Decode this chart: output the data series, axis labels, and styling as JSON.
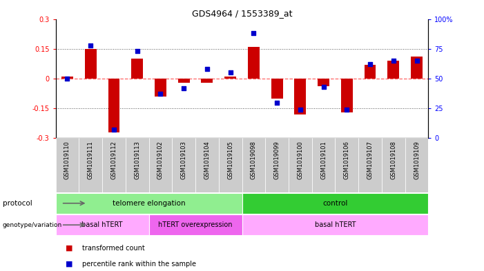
{
  "title": "GDS4964 / 1553389_at",
  "samples": [
    "GSM1019110",
    "GSM1019111",
    "GSM1019112",
    "GSM1019113",
    "GSM1019102",
    "GSM1019103",
    "GSM1019104",
    "GSM1019105",
    "GSM1019098",
    "GSM1019099",
    "GSM1019100",
    "GSM1019101",
    "GSM1019106",
    "GSM1019107",
    "GSM1019108",
    "GSM1019109"
  ],
  "transformed_count": [
    0.01,
    0.15,
    -0.27,
    0.1,
    -0.09,
    -0.02,
    -0.02,
    0.01,
    0.16,
    -0.1,
    -0.18,
    -0.04,
    -0.17,
    0.07,
    0.09,
    0.11
  ],
  "percentile_rank": [
    50,
    78,
    7,
    73,
    37,
    42,
    58,
    55,
    88,
    30,
    24,
    43,
    24,
    62,
    65,
    65
  ],
  "ylim_left": [
    -0.3,
    0.3
  ],
  "ylim_right": [
    0,
    100
  ],
  "yticks_left": [
    -0.3,
    -0.15,
    0,
    0.15,
    0.3
  ],
  "yticks_right": [
    0,
    25,
    50,
    75,
    100
  ],
  "protocol_groups": [
    {
      "label": "telomere elongation",
      "start": 0,
      "end": 8,
      "color": "#90EE90"
    },
    {
      "label": "control",
      "start": 8,
      "end": 16,
      "color": "#33CC33"
    }
  ],
  "genotype_groups": [
    {
      "label": "basal hTERT",
      "start": 0,
      "end": 4,
      "color": "#FFAAFF"
    },
    {
      "label": "hTERT overexpression",
      "start": 4,
      "end": 8,
      "color": "#EE66EE"
    },
    {
      "label": "basal hTERT",
      "start": 8,
      "end": 16,
      "color": "#FFAAFF"
    }
  ],
  "bar_color": "#CC0000",
  "dot_color": "#0000CC",
  "zero_line_color": "#FF6666",
  "dotted_line_color": "#555555",
  "background_labels": "#CCCCCC",
  "bar_width": 0.5,
  "dot_size": 20,
  "legend_items": [
    {
      "color": "#CC0000",
      "label": "transformed count"
    },
    {
      "color": "#0000CC",
      "label": "percentile rank within the sample"
    }
  ]
}
